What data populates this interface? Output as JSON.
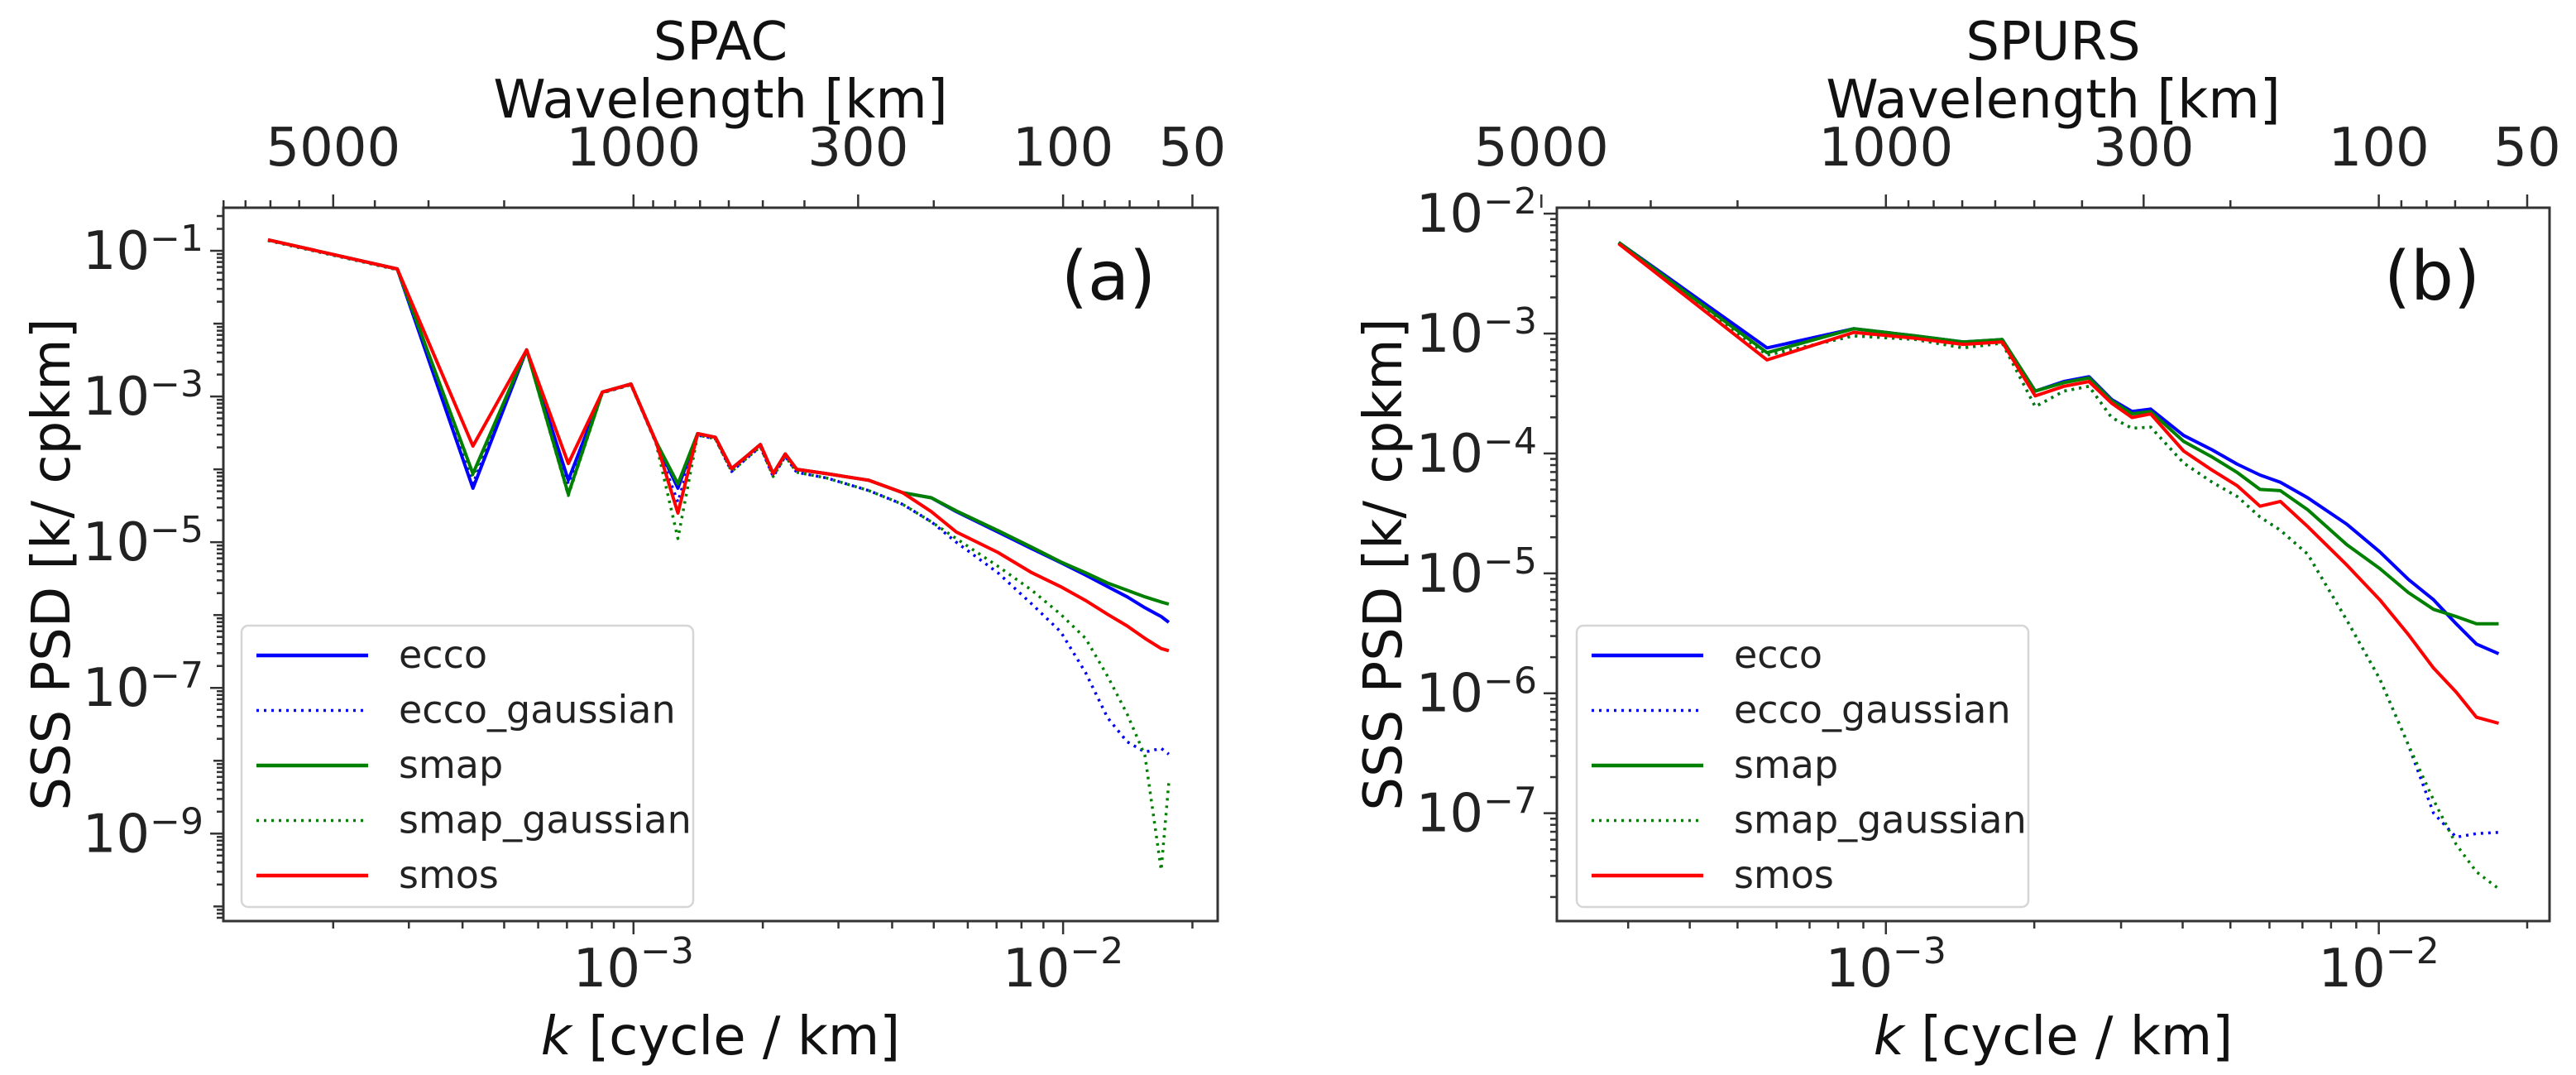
{
  "chart_data": [
    {
      "type": "line",
      "panel_label": "(a)",
      "title": "SPAC",
      "top_xlabel": "Wavelength [km]",
      "top_xticks": [
        5000,
        1000,
        300,
        100,
        50
      ],
      "top_xtick_labels": [
        "5000",
        "1000",
        "300",
        "100",
        "50"
      ],
      "xlabel_italic": "k",
      "xlabel_rest": " [cycle / km]",
      "ylabel": "SSS PSD [k/ cpkm]",
      "xscale": "log",
      "yscale": "log",
      "xlim": [
        0.000111,
        0.0229
      ],
      "ylim": [
        6.3e-11,
        0.39
      ],
      "xticks": [
        {
          "value": 0.001,
          "base": "10",
          "exp": "−3"
        },
        {
          "value": 0.01,
          "base": "10",
          "exp": "−2"
        }
      ],
      "yticks": [
        {
          "value": 0.1,
          "base": "10",
          "exp": "−1"
        },
        {
          "value": 0.001,
          "base": "10",
          "exp": "−3"
        },
        {
          "value": 1e-05,
          "base": "10",
          "exp": "−5"
        },
        {
          "value": 1e-07,
          "base": "10",
          "exp": "−7"
        },
        {
          "value": 1e-09,
          "base": "10",
          "exp": "−9"
        }
      ],
      "legend_position": "lower-left",
      "k": [
        0.000141,
        0.000282,
        0.000423,
        0.000564,
        0.000705,
        0.000846,
        0.000987,
        0.001128,
        0.001269,
        0.00141,
        0.001551,
        0.001692,
        0.001833,
        0.001974,
        0.002115,
        0.002256,
        0.002397,
        0.00282,
        0.003525,
        0.00423,
        0.004935,
        0.00564,
        0.00705,
        0.00846,
        0.00987,
        0.01128,
        0.01269,
        0.0141,
        0.01551,
        0.01692,
        0.017625
      ],
      "series": [
        {
          "name": "ecco",
          "color": "#0000ff",
          "style": "solid",
          "log10_psd": [
            -0.85,
            -1.25,
            -4.26,
            -2.36,
            -4.15,
            -2.94,
            -2.83,
            -3.62,
            -4.26,
            -3.51,
            -3.56,
            -3.99,
            -3.82,
            -3.66,
            -4.06,
            -3.79,
            -4.0,
            -4.06,
            -4.15,
            -4.32,
            -4.39,
            -4.58,
            -4.86,
            -5.09,
            -5.28,
            -5.45,
            -5.61,
            -5.75,
            -5.9,
            -6.02,
            -6.1
          ]
        },
        {
          "name": "ecco_gaussian",
          "color": "#0000ff",
          "style": "dotted",
          "log10_psd": [
            -0.86,
            -1.26,
            -4.2,
            -2.37,
            -4.2,
            -2.95,
            -2.84,
            -3.64,
            -4.45,
            -3.53,
            -3.58,
            -4.03,
            -3.85,
            -3.69,
            -4.1,
            -3.82,
            -4.04,
            -4.12,
            -4.29,
            -4.48,
            -4.72,
            -5.0,
            -5.42,
            -5.85,
            -6.23,
            -6.79,
            -7.41,
            -7.74,
            -7.88,
            -7.83,
            -7.91
          ]
        },
        {
          "name": "smap",
          "color": "#008000",
          "style": "solid",
          "log10_psd": [
            -0.85,
            -1.25,
            -4.06,
            -2.36,
            -4.34,
            -2.94,
            -2.83,
            -3.62,
            -4.2,
            -3.51,
            -3.56,
            -3.99,
            -3.82,
            -3.66,
            -4.06,
            -3.79,
            -4.0,
            -4.06,
            -4.15,
            -4.32,
            -4.39,
            -4.57,
            -4.84,
            -5.07,
            -5.27,
            -5.42,
            -5.56,
            -5.66,
            -5.75,
            -5.82,
            -5.85
          ]
        },
        {
          "name": "smap_gaussian",
          "color": "#008000",
          "style": "dotted",
          "log10_psd": [
            -0.86,
            -1.26,
            -4.1,
            -2.37,
            -4.36,
            -2.95,
            -2.84,
            -3.64,
            -4.95,
            -3.53,
            -3.58,
            -4.03,
            -3.85,
            -3.69,
            -4.1,
            -3.82,
            -4.04,
            -4.12,
            -4.29,
            -4.48,
            -4.72,
            -4.95,
            -5.33,
            -5.66,
            -5.99,
            -6.32,
            -6.84,
            -7.36,
            -7.93,
            -9.5,
            -8.3
          ]
        },
        {
          "name": "smos",
          "color": "#ff0000",
          "style": "solid",
          "log10_psd": [
            -0.85,
            -1.25,
            -3.68,
            -2.36,
            -3.92,
            -2.94,
            -2.83,
            -3.62,
            -4.6,
            -3.51,
            -3.56,
            -3.99,
            -3.82,
            -3.66,
            -4.06,
            -3.79,
            -4.0,
            -4.06,
            -4.15,
            -4.32,
            -4.58,
            -4.86,
            -5.14,
            -5.42,
            -5.61,
            -5.8,
            -5.99,
            -6.15,
            -6.32,
            -6.46,
            -6.49
          ]
        }
      ]
    },
    {
      "type": "line",
      "panel_label": "(b)",
      "title": "SPURS",
      "top_xlabel": "Wavelength [km]",
      "top_xticks": [
        5000,
        1000,
        300,
        100,
        50
      ],
      "top_xtick_labels": [
        "5000",
        "1000",
        "300",
        "100",
        "50"
      ],
      "xlabel_italic": "k",
      "xlabel_rest": " [cycle / km]",
      "ylabel": "SSS PSD [k/ cpkm]",
      "xscale": "log",
      "yscale": "log",
      "xlim": [
        0.000215,
        0.0222
      ],
      "ylim": [
        1.26e-08,
        0.0112
      ],
      "xticks": [
        {
          "value": 0.001,
          "base": "10",
          "exp": "−3"
        },
        {
          "value": 0.01,
          "base": "10",
          "exp": "−2"
        }
      ],
      "yticks": [
        {
          "value": 0.01,
          "base": "10",
          "exp": "−2"
        },
        {
          "value": 0.001,
          "base": "10",
          "exp": "−3"
        },
        {
          "value": 0.0001,
          "base": "10",
          "exp": "−4"
        },
        {
          "value": 1e-05,
          "base": "10",
          "exp": "−5"
        },
        {
          "value": 1e-06,
          "base": "10",
          "exp": "−6"
        },
        {
          "value": 1e-07,
          "base": "10",
          "exp": "−7"
        }
      ],
      "legend_position": "lower-left",
      "k": [
        0.000287,
        0.000574,
        0.000861,
        0.001148,
        0.001435,
        0.001722,
        0.002009,
        0.002296,
        0.002583,
        0.00287,
        0.003157,
        0.003444,
        0.004018,
        0.004592,
        0.005166,
        0.00574,
        0.006314,
        0.007175,
        0.00861,
        0.010045,
        0.01148,
        0.012915,
        0.01435,
        0.015785,
        0.017507
      ],
      "series": [
        {
          "name": "ecco",
          "color": "#0000ff",
          "style": "solid",
          "log10_psd": [
            -2.24,
            -3.12,
            -2.96,
            -3.02,
            -3.07,
            -3.05,
            -3.48,
            -3.4,
            -3.36,
            -3.55,
            -3.65,
            -3.63,
            -3.85,
            -3.97,
            -4.09,
            -4.18,
            -4.24,
            -4.37,
            -4.59,
            -4.82,
            -5.05,
            -5.22,
            -5.42,
            -5.59,
            -5.67
          ]
        },
        {
          "name": "ecco_gaussian",
          "color": "#0000ff",
          "style": "dotted",
          "log10_psd": [
            -2.25,
            -3.18,
            -3.02,
            -3.05,
            -3.12,
            -3.08,
            -3.61,
            -3.48,
            -3.44,
            -3.7,
            -3.79,
            -3.78,
            -4.08,
            -4.24,
            -4.36,
            -4.53,
            -4.64,
            -4.84,
            -5.39,
            -5.88,
            -6.43,
            -7.0,
            -7.2,
            -7.17,
            -7.16
          ]
        },
        {
          "name": "smap",
          "color": "#008000",
          "style": "solid",
          "log10_psd": [
            -2.24,
            -3.16,
            -2.96,
            -3.02,
            -3.07,
            -3.05,
            -3.48,
            -3.41,
            -3.37,
            -3.56,
            -3.67,
            -3.65,
            -3.9,
            -4.03,
            -4.16,
            -4.3,
            -4.31,
            -4.47,
            -4.76,
            -4.96,
            -5.16,
            -5.3,
            -5.36,
            -5.42,
            -5.42
          ]
        },
        {
          "name": "smap_gaussian",
          "color": "#008000",
          "style": "dotted",
          "log10_psd": [
            -2.25,
            -3.18,
            -3.02,
            -3.05,
            -3.12,
            -3.08,
            -3.61,
            -3.48,
            -3.44,
            -3.7,
            -3.79,
            -3.78,
            -4.08,
            -4.24,
            -4.36,
            -4.53,
            -4.64,
            -4.84,
            -5.39,
            -5.88,
            -6.43,
            -6.89,
            -7.26,
            -7.49,
            -7.63
          ]
        },
        {
          "name": "smos",
          "color": "#ff0000",
          "style": "solid",
          "log10_psd": [
            -2.25,
            -3.22,
            -2.99,
            -3.04,
            -3.09,
            -3.07,
            -3.52,
            -3.44,
            -3.4,
            -3.58,
            -3.7,
            -3.67,
            -3.98,
            -4.14,
            -4.27,
            -4.44,
            -4.4,
            -4.61,
            -4.93,
            -5.22,
            -5.51,
            -5.79,
            -5.99,
            -6.2,
            -6.25
          ]
        }
      ]
    }
  ]
}
